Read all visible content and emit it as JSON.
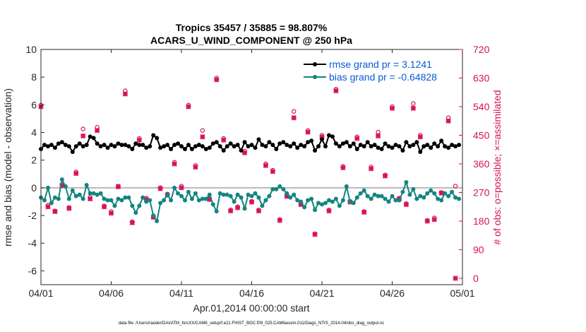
{
  "chart_data": {
    "type": "line",
    "title": "Tropics 35457 / 35885 = 98.807%",
    "subtitle": "ACARS_U_WIND_COMPONENT @ 250 hPa",
    "xlabel": "Apr.01,2014 00:00:00 start",
    "ylabel": "rmse and bias (model - observation)",
    "ylabel_right": "# of obs: o=possible; ×=assimilated",
    "footnote": "data file: /Users/raeder/DAI/ATM_forcXX/CAM6_setup/f.e21.FHIST_BGC.f09_025.CAM6assim.011/Diags_NTrS_2014-04/obs_diag_output.nc",
    "xlim": [
      0,
      30
    ],
    "ylim": [
      -7,
      10
    ],
    "ylim_right": [
      -20,
      720
    ],
    "x_ticks": [
      {
        "value": 0,
        "label": "04/01"
      },
      {
        "value": 5,
        "label": "04/06"
      },
      {
        "value": 10,
        "label": "04/11"
      },
      {
        "value": 15,
        "label": "04/16"
      },
      {
        "value": 20,
        "label": "04/21"
      },
      {
        "value": 25,
        "label": "04/26"
      },
      {
        "value": 30,
        "label": "05/01"
      }
    ],
    "y_ticks": [
      {
        "value": 10,
        "label": "10"
      },
      {
        "value": 8,
        "label": "8"
      },
      {
        "value": 6,
        "label": "6"
      },
      {
        "value": 4,
        "label": "4"
      },
      {
        "value": 2,
        "label": "2"
      },
      {
        "value": 0,
        "label": "0"
      },
      {
        "value": -2,
        "label": "-2"
      },
      {
        "value": -4,
        "label": "-4"
      },
      {
        "value": -6,
        "label": "-6"
      }
    ],
    "y_ticks_right": [
      {
        "value": 720,
        "label": "720"
      },
      {
        "value": 630,
        "label": "630"
      },
      {
        "value": 540,
        "label": "540"
      },
      {
        "value": 450,
        "label": "450"
      },
      {
        "value": 360,
        "label": "360"
      },
      {
        "value": 270,
        "label": "270"
      },
      {
        "value": 180,
        "label": "180"
      },
      {
        "value": 90,
        "label": "90"
      },
      {
        "value": 0,
        "label": "0"
      }
    ],
    "zero_line": 0,
    "series": [
      {
        "name": "rmse grand pr = 3.1241",
        "color": "#000000",
        "marker": "circle",
        "x": [
          0.0,
          0.25,
          0.5,
          0.75,
          1.0,
          1.25,
          1.5,
          1.75,
          2.0,
          2.25,
          2.5,
          2.75,
          3.0,
          3.25,
          3.5,
          3.75,
          4.0,
          4.25,
          4.5,
          4.75,
          5.0,
          5.25,
          5.5,
          5.75,
          6.0,
          6.25,
          6.5,
          6.75,
          7.0,
          7.25,
          7.5,
          7.75,
          8.0,
          8.25,
          8.5,
          8.75,
          9.0,
          9.25,
          9.5,
          9.75,
          10.0,
          10.25,
          10.5,
          10.75,
          11.0,
          11.25,
          11.5,
          11.75,
          12.0,
          12.25,
          12.5,
          12.75,
          13.0,
          13.25,
          13.5,
          13.75,
          14.0,
          14.25,
          14.5,
          14.75,
          15.0,
          15.25,
          15.5,
          15.75,
          16.0,
          16.25,
          16.5,
          16.75,
          17.0,
          17.25,
          17.5,
          17.75,
          18.0,
          18.25,
          18.5,
          18.75,
          19.0,
          19.25,
          19.5,
          19.75,
          20.0,
          20.25,
          20.5,
          20.75,
          21.0,
          21.25,
          21.5,
          21.75,
          22.0,
          22.25,
          22.5,
          22.75,
          23.0,
          23.25,
          23.5,
          23.75,
          24.0,
          24.25,
          24.5,
          24.75,
          25.0,
          25.25,
          25.5,
          25.75,
          26.0,
          26.25,
          26.5,
          26.75,
          27.0,
          27.25,
          27.5,
          27.75,
          28.0,
          28.25,
          28.5,
          28.75,
          29.0,
          29.25,
          29.5,
          29.75
        ],
        "values": [
          2.8,
          3.1,
          3.0,
          3.1,
          2.9,
          3.2,
          3.3,
          3.1,
          3.0,
          2.6,
          3.0,
          3.2,
          3.0,
          3.1,
          3.7,
          3.6,
          3.2,
          3.0,
          3.1,
          2.9,
          3.1,
          3.0,
          3.2,
          3.1,
          3.1,
          3.0,
          2.8,
          3.2,
          3.1,
          3.1,
          2.9,
          3.0,
          3.8,
          3.6,
          2.9,
          3.0,
          3.1,
          2.8,
          3.1,
          3.2,
          3.0,
          2.8,
          3.1,
          2.8,
          3.0,
          3.1,
          3.0,
          2.8,
          2.9,
          3.2,
          3.3,
          3.0,
          2.7,
          3.0,
          3.2,
          3.0,
          3.1,
          2.7,
          3.3,
          3.0,
          3.1,
          2.9,
          3.5,
          3.1,
          3.0,
          3.3,
          3.1,
          2.8,
          3.2,
          3.3,
          3.1,
          3.0,
          3.2,
          2.9,
          3.1,
          3.0,
          3.3,
          3.4,
          2.7,
          3.0,
          3.5,
          3.0,
          3.8,
          3.7,
          3.2,
          3.0,
          3.2,
          3.3,
          3.0,
          3.2,
          2.8,
          3.1,
          3.0,
          3.3,
          3.0,
          3.1,
          2.9,
          2.8,
          3.2,
          3.0,
          2.9,
          3.1,
          3.0,
          2.7,
          3.3,
          3.0,
          3.1,
          3.3,
          2.6,
          3.0,
          3.1,
          2.9,
          3.2,
          3.0,
          3.4,
          3.0,
          2.9,
          3.1,
          3.0,
          3.1
        ]
      },
      {
        "name": "bias grand pr = -0.64828",
        "color": "#12857f",
        "marker": "circle",
        "x": [
          0.0,
          0.25,
          0.5,
          0.75,
          1.0,
          1.25,
          1.5,
          1.75,
          2.0,
          2.25,
          2.5,
          2.75,
          3.0,
          3.25,
          3.5,
          3.75,
          4.0,
          4.25,
          4.5,
          4.75,
          5.0,
          5.25,
          5.5,
          5.75,
          6.0,
          6.25,
          6.5,
          6.75,
          7.0,
          7.25,
          7.5,
          7.75,
          8.0,
          8.25,
          8.5,
          8.75,
          9.0,
          9.25,
          9.5,
          9.75,
          10.0,
          10.25,
          10.5,
          10.75,
          11.0,
          11.25,
          11.5,
          11.75,
          12.0,
          12.25,
          12.5,
          12.75,
          13.0,
          13.25,
          13.5,
          13.75,
          14.0,
          14.25,
          14.5,
          14.75,
          15.0,
          15.25,
          15.5,
          15.75,
          16.0,
          16.25,
          16.5,
          16.75,
          17.0,
          17.25,
          17.5,
          17.75,
          18.0,
          18.25,
          18.5,
          18.75,
          19.0,
          19.25,
          19.5,
          19.75,
          20.0,
          20.25,
          20.5,
          20.75,
          21.0,
          21.25,
          21.5,
          21.75,
          22.0,
          22.25,
          22.5,
          22.75,
          23.0,
          23.25,
          23.5,
          23.75,
          24.0,
          24.25,
          24.5,
          24.75,
          25.0,
          25.25,
          25.5,
          25.75,
          26.0,
          26.25,
          26.5,
          26.75,
          27.0,
          27.25,
          27.5,
          27.75,
          28.0,
          28.25,
          28.5,
          28.75,
          29.0,
          29.25,
          29.5,
          29.75
        ],
        "values": [
          -0.7,
          -0.9,
          0.0,
          -1.1,
          -0.7,
          -0.8,
          0.6,
          0.1,
          -0.8,
          -0.2,
          -0.6,
          -0.5,
          -0.8,
          0.2,
          -0.4,
          -0.4,
          -0.5,
          -0.4,
          -0.8,
          -0.9,
          -0.9,
          -1.3,
          -0.8,
          -0.9,
          -0.7,
          -0.7,
          -1.3,
          -1.8,
          -1.3,
          -0.7,
          -1.0,
          -0.9,
          -2.0,
          -2.4,
          -1.1,
          -0.9,
          -0.5,
          -0.9,
          0.0,
          -0.4,
          -0.6,
          -0.9,
          -0.3,
          -0.8,
          -0.4,
          -0.9,
          -0.8,
          -0.8,
          -0.5,
          -1.2,
          -1.7,
          -0.4,
          -0.5,
          -0.5,
          -0.6,
          -1.0,
          -0.5,
          -0.7,
          -1.5,
          -0.5,
          -0.6,
          -0.4,
          -0.7,
          -1.3,
          -0.9,
          -0.6,
          -0.1,
          -0.1,
          0.1,
          -0.1,
          -0.4,
          -0.7,
          -0.5,
          -0.9,
          -1.0,
          -1.4,
          -0.9,
          -0.8,
          -1.6,
          -1.1,
          -1.2,
          -1.1,
          -0.9,
          -1.0,
          -0.8,
          -1.3,
          -0.9,
          0.1,
          -1.0,
          -1.1,
          -0.7,
          -0.4,
          -0.2,
          -0.6,
          -0.8,
          -0.5,
          -0.6,
          -0.6,
          -0.8,
          -1.0,
          -0.6,
          -0.9,
          -0.9,
          -0.3,
          0.4,
          -0.5,
          -0.1,
          -0.8,
          -0.6,
          -0.7,
          -0.4,
          -0.2,
          -0.4,
          -0.8,
          -0.9,
          -0.4,
          -0.6,
          -0.3,
          -0.7,
          -0.8
        ]
      },
      {
        "name": "obs possible",
        "color": "#d6105a",
        "marker": "o",
        "axis": "right",
        "x": [
          0.0,
          0.5,
          1.0,
          1.5,
          2.0,
          2.5,
          3.0,
          3.5,
          4.0,
          4.5,
          5.0,
          5.5,
          6.0,
          6.5,
          7.0,
          7.5,
          8.0,
          8.5,
          9.0,
          9.5,
          10.0,
          10.5,
          11.0,
          11.5,
          12.0,
          12.5,
          13.0,
          13.5,
          14.0,
          14.5,
          15.0,
          15.5,
          16.0,
          16.5,
          17.0,
          17.5,
          18.0,
          18.5,
          19.0,
          19.5,
          20.0,
          20.5,
          21.0,
          21.5,
          22.0,
          22.5,
          23.0,
          23.5,
          24.0,
          24.5,
          25.0,
          25.5,
          26.0,
          26.5,
          27.0,
          27.5,
          28.0,
          28.5,
          29.0,
          29.5
        ],
        "values": [
          545,
          230,
          212,
          295,
          223,
          335,
          470,
          255,
          475,
          228,
          210,
          290,
          590,
          178,
          440,
          252,
          195,
          285,
          265,
          365,
          290,
          545,
          355,
          465,
          250,
          630,
          440,
          215,
          225,
          400,
          242,
          215,
          360,
          340,
          185,
          262,
          525,
          235,
          465,
          140,
          450,
          215,
          595,
          352,
          242,
          445,
          210,
          350,
          460,
          325,
          540,
          252,
          235,
          550,
          450,
          182,
          190,
          270,
          505,
          290
        ]
      },
      {
        "name": "obs assimilated",
        "color": "#d6105a",
        "marker": "x",
        "axis": "right",
        "x": [
          0.0,
          0.5,
          1.0,
          1.5,
          2.0,
          2.5,
          3.0,
          3.5,
          4.0,
          4.5,
          5.0,
          5.5,
          6.0,
          6.5,
          7.0,
          7.5,
          8.0,
          8.5,
          9.0,
          9.5,
          10.0,
          10.5,
          11.0,
          11.5,
          12.0,
          12.5,
          13.0,
          13.5,
          14.0,
          14.5,
          15.0,
          15.5,
          16.0,
          16.5,
          17.0,
          17.5,
          18.0,
          18.5,
          19.0,
          19.5,
          20.0,
          20.5,
          21.0,
          21.5,
          22.0,
          22.5,
          23.0,
          23.5,
          24.0,
          24.5,
          25.0,
          25.5,
          26.0,
          26.5,
          27.0,
          27.5,
          28.0,
          28.5,
          29.0,
          29.5
        ],
        "values": [
          540,
          225,
          210,
          292,
          220,
          330,
          448,
          250,
          465,
          225,
          205,
          288,
          580,
          175,
          435,
          248,
          192,
          282,
          262,
          360,
          285,
          540,
          350,
          445,
          248,
          625,
          435,
          212,
          222,
          395,
          240,
          212,
          355,
          336,
          182,
          258,
          505,
          232,
          460,
          138,
          445,
          212,
          590,
          348,
          240,
          440,
          208,
          345,
          448,
          322,
          535,
          250,
          232,
          535,
          445,
          180,
          185,
          268,
          495,
          0
        ]
      }
    ]
  }
}
